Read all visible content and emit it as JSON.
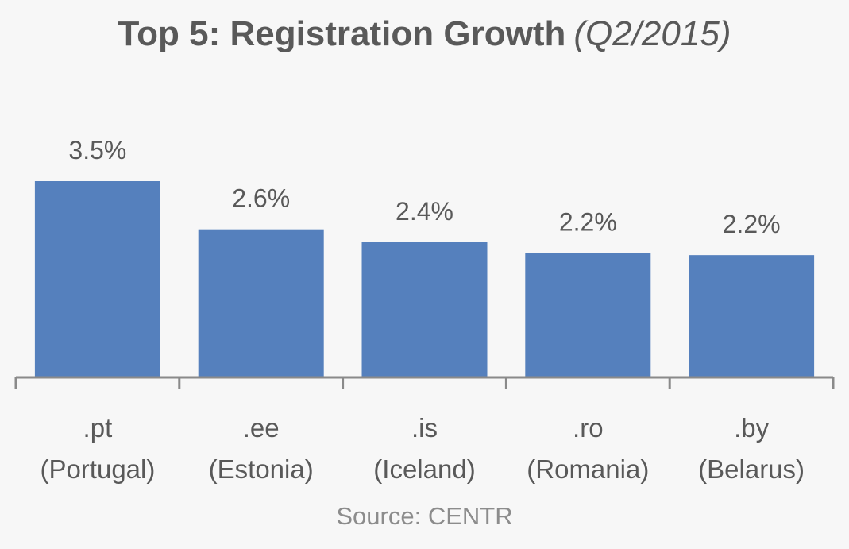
{
  "chart_data": {
    "type": "bar",
    "title": "Top 5: Registration Growth",
    "subtitle": "(Q2/2015)",
    "categories": [
      {
        "code": ".pt",
        "name": "(Portugal)"
      },
      {
        "code": ".ee",
        "name": "(Estonia)"
      },
      {
        "code": ".is",
        "name": "(Iceland)"
      },
      {
        "code": ".ro",
        "name": "(Romania)"
      },
      {
        "code": ".by",
        "name": "(Belarus)"
      }
    ],
    "values": [
      3.5,
      2.64,
      2.41,
      2.22,
      2.18
    ],
    "data_labels": [
      "3.5%",
      "2.6%",
      "2.4%",
      "2.2%",
      "2.2%"
    ],
    "unit": "%",
    "xlabel": "",
    "ylabel": "",
    "ylim": [
      0,
      3.5
    ],
    "grid": false,
    "bar_color": "#5580bd",
    "source": "Source: CENTR"
  }
}
